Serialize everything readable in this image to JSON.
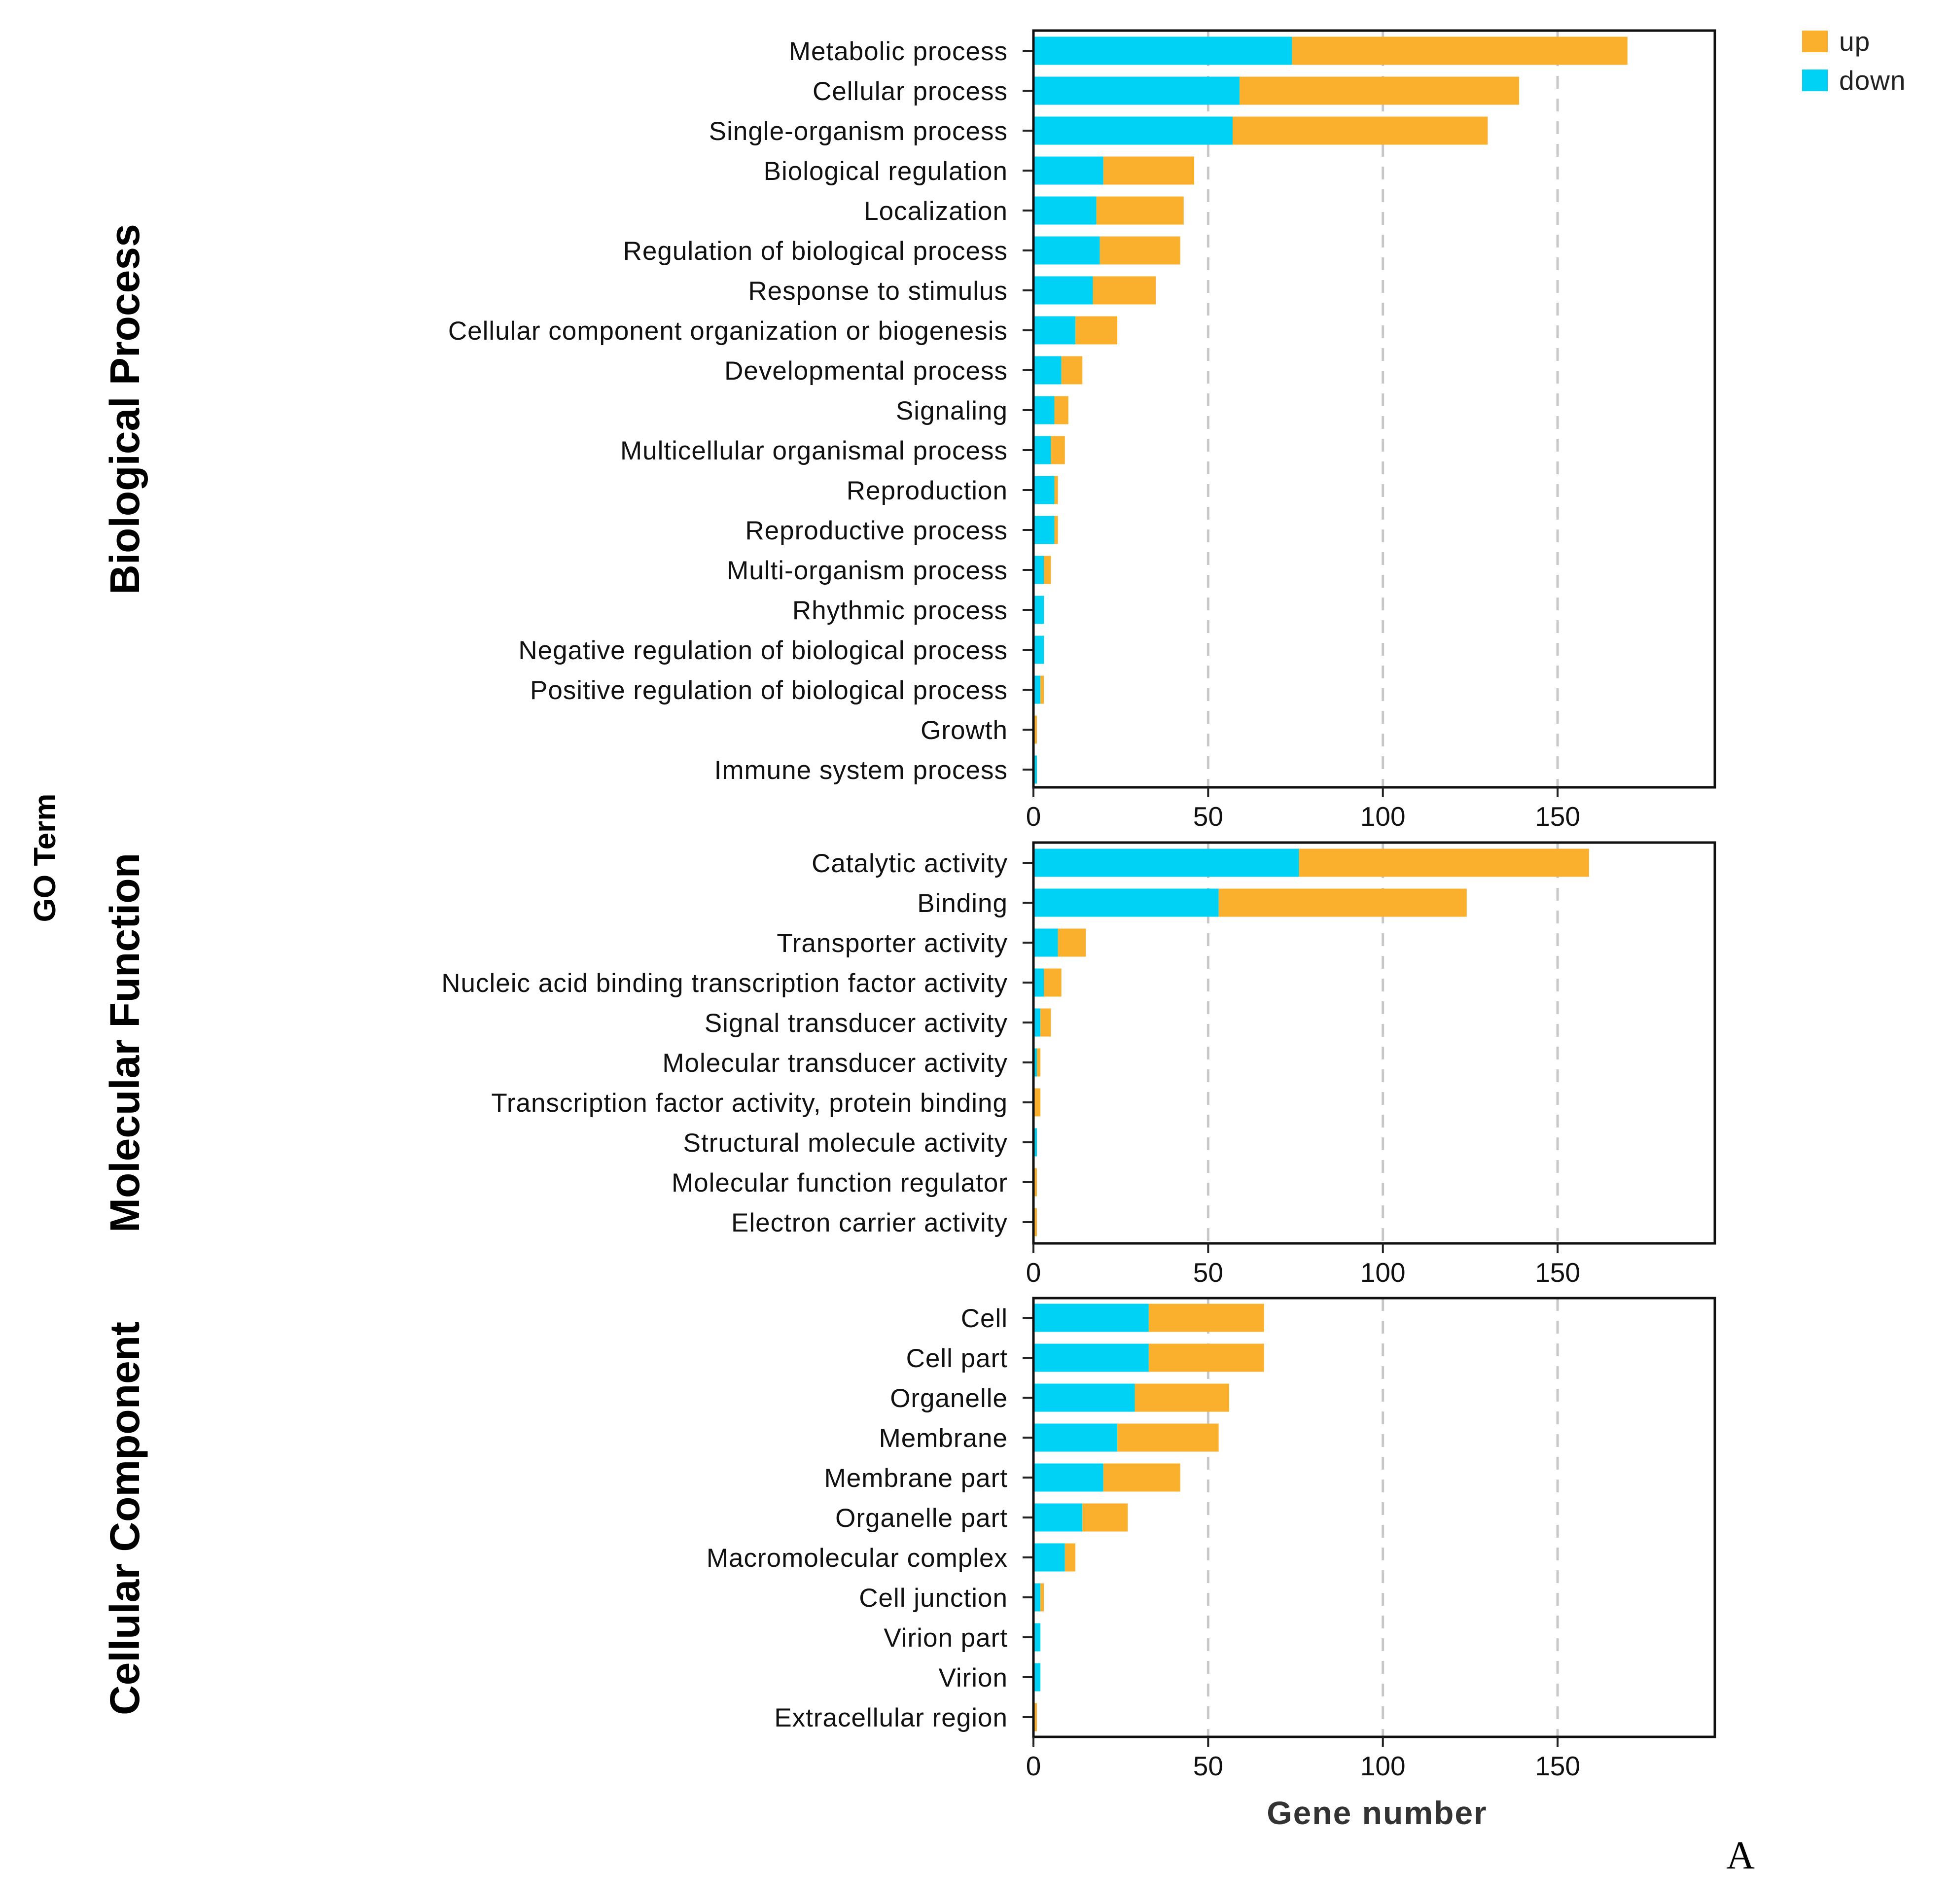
{
  "chart_data": {
    "type": "bar",
    "stacked": true,
    "orientation": "horizontal",
    "xlabel": "Gene number",
    "ylabel": "GO Term",
    "xlim": [
      0,
      195
    ],
    "xticks": [
      0,
      50,
      100,
      150
    ],
    "grid": "vertical dashed",
    "legend": [
      {
        "name": "up",
        "color": "#FBB02D"
      },
      {
        "name": "down",
        "color": "#00D2F5"
      }
    ],
    "legend_position": "top-right",
    "figure_label": "A",
    "panels": [
      {
        "title": "Biological Process",
        "categories": [
          "Metabolic process",
          "Cellular process",
          "Single-organism process",
          "Biological regulation",
          "Localization",
          "Regulation of biological process",
          "Response to stimulus",
          "Cellular component organization or biogenesis",
          "Developmental process",
          "Signaling",
          "Multicellular organismal process",
          "Reproduction",
          "Reproductive process",
          "Multi-organism process",
          "Rhythmic process",
          "Negative regulation of biological process",
          "Positive regulation of biological process",
          "Growth",
          "Immune system process"
        ],
        "series": [
          {
            "name": "down",
            "values": [
              74,
              59,
              57,
              20,
              18,
              19,
              17,
              12,
              8,
              6,
              5,
              6,
              6,
              3,
              3,
              3,
              2,
              0,
              1
            ]
          },
          {
            "name": "up",
            "values": [
              96,
              80,
              73,
              26,
              25,
              23,
              18,
              12,
              6,
              4,
              4,
              1,
              1,
              2,
              0,
              0,
              1,
              1,
              0
            ]
          }
        ]
      },
      {
        "title": "Molecular Function",
        "categories": [
          "Catalytic activity",
          "Binding",
          "Transporter activity",
          "Nucleic acid binding transcription factor activity",
          "Signal transducer activity",
          "Molecular transducer activity",
          "Transcription factor activity, protein binding",
          "Structural molecule activity",
          "Molecular function regulator",
          "Electron carrier activity"
        ],
        "series": [
          {
            "name": "down",
            "values": [
              76,
              53,
              7,
              3,
              2,
              1,
              0,
              1,
              0,
              0
            ]
          },
          {
            "name": "up",
            "values": [
              83,
              71,
              8,
              5,
              3,
              1,
              2,
              0,
              1,
              1
            ]
          }
        ]
      },
      {
        "title": "Cellular Component",
        "categories": [
          "Cell",
          "Cell part",
          "Organelle",
          "Membrane",
          "Membrane part",
          "Organelle part",
          "Macromolecular complex",
          "Cell junction",
          "Virion part",
          "Virion",
          "Extracellular region"
        ],
        "series": [
          {
            "name": "down",
            "values": [
              33,
              33,
              29,
              24,
              20,
              14,
              9,
              2,
              2,
              2,
              0
            ]
          },
          {
            "name": "up",
            "values": [
              33,
              33,
              27,
              29,
              22,
              13,
              3,
              1,
              0,
              0,
              1
            ]
          }
        ]
      }
    ]
  }
}
